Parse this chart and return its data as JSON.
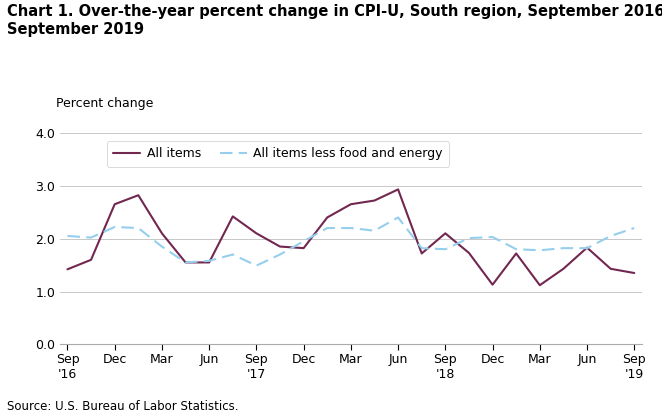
{
  "title": "Chart 1. Over-the-year percent change in CPI-U, South region, September 2016–\nSeptember 2019",
  "ylabel": "Percent change",
  "source": "Source: U.S. Bureau of Labor Statistics.",
  "ylim": [
    0.0,
    4.0
  ],
  "yticks": [
    0.0,
    1.0,
    2.0,
    3.0,
    4.0
  ],
  "x_tick_labels": [
    "Sep\n'16",
    "Dec",
    "Mar",
    "Jun",
    "Sep\n'17",
    "Dec",
    "Mar",
    "Jun",
    "Sep\n'18",
    "Dec",
    "Mar",
    "Jun",
    "Sep\n'19"
  ],
  "x_tick_positions": [
    0,
    3,
    6,
    9,
    12,
    15,
    18,
    21,
    24,
    27,
    30,
    33,
    36
  ],
  "all_items": [
    1.42,
    1.6,
    2.65,
    2.82,
    2.1,
    1.55,
    1.55,
    2.42,
    2.1,
    1.85,
    1.82,
    2.4,
    2.65,
    2.72,
    2.93,
    1.72,
    2.1,
    1.73,
    1.13,
    1.72,
    1.12,
    1.43,
    1.83,
    1.43,
    1.35
  ],
  "less_food_energy": [
    2.05,
    2.02,
    2.22,
    2.2,
    1.85,
    1.55,
    1.58,
    1.7,
    1.49,
    1.7,
    1.95,
    2.2,
    2.2,
    2.15,
    2.4,
    1.82,
    1.8,
    2.01,
    2.03,
    1.8,
    1.78,
    1.82,
    1.82,
    2.05,
    2.2
  ],
  "all_items_color": "#722750",
  "less_food_color": "#96CEED",
  "legend_label_all": "All items",
  "legend_label_less": "All items less food and energy",
  "title_fontsize": 10.5,
  "tick_fontsize": 9,
  "source_fontsize": 8.5,
  "ylabel_fontsize": 9
}
